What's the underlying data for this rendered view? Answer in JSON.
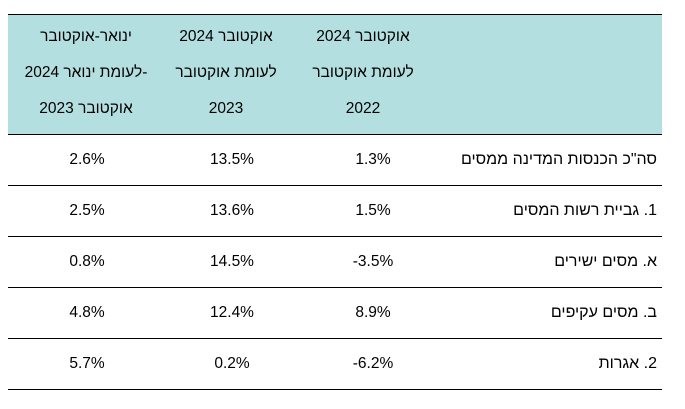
{
  "header": {
    "col_jan_oct": [
      "ינואר-אוקטובר",
      "2024 לעומת ינואר-",
      "אוקטובר 2023"
    ],
    "col_oct_2023": [
      "אוקטובר 2024",
      "לעומת אוקטובר",
      "2023"
    ],
    "col_oct_2022": [
      "אוקטובר 2024",
      "לעומת אוקטובר",
      "2022"
    ]
  },
  "rows": [
    {
      "label": "סה\"כ הכנסות המדינה ממסים",
      "jan_oct": "2.6%",
      "oct_2023": "13.5%",
      "oct_2022": "1.3%"
    },
    {
      "label": "1. גביית רשות המסים",
      "jan_oct": "2.5%",
      "oct_2023": "13.6%",
      "oct_2022": "1.5%"
    },
    {
      "label": "א. מסים ישירים",
      "jan_oct": "0.8%",
      "oct_2023": "14.5%",
      "oct_2022": "-3.5%"
    },
    {
      "label": "ב. מסים עקיפים",
      "jan_oct": "4.8%",
      "oct_2023": "12.4%",
      "oct_2022": "8.9%"
    },
    {
      "label": "2. אגרות",
      "jan_oct": "5.7%",
      "oct_2023": "0.2%",
      "oct_2022": "-6.2%"
    }
  ]
}
